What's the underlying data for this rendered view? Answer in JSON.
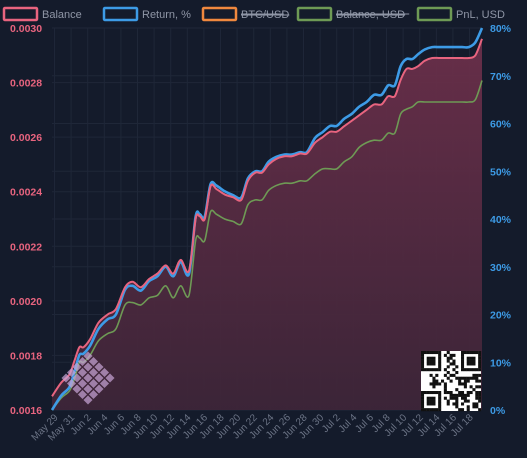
{
  "chart_data": {
    "type": "area",
    "title": "",
    "xlabel": "",
    "ylabel_left": "",
    "ylabel_right": "",
    "grid": true,
    "legend_position": "top",
    "colors": {
      "balance": "#e8647f",
      "return": "#3d9be6",
      "btcusd": "#f0883e",
      "balance_usd": "#6e9a55",
      "pnl_usd": "#6e9a55",
      "background": "#141b2b",
      "grid": "#1f2738",
      "area_fill": "#5a2c43"
    },
    "legend": [
      {
        "label": "Balance",
        "color": "#e8647f",
        "struck": false
      },
      {
        "label": "Return, %",
        "color": "#3d9be6",
        "struck": false
      },
      {
        "label": "BTC/USD",
        "color": "#f0883e",
        "struck": true
      },
      {
        "label": "Balance, USD",
        "color": "#6e9a55",
        "struck": true
      },
      {
        "label": "PnL, USD",
        "color": "#6e9a55",
        "struck": false
      }
    ],
    "y_left": {
      "ylim": [
        0.0016,
        0.003
      ],
      "ticks": [
        "0.0030",
        "0.0028",
        "0.0026",
        "0.0024",
        "0.0022",
        "0.0020",
        "0.0018",
        "0.0016"
      ],
      "tick_values": [
        0.003,
        0.0028,
        0.0026,
        0.0024,
        0.0022,
        0.002,
        0.0018,
        0.0016
      ]
    },
    "y_right": {
      "ylim": [
        0,
        80
      ],
      "ticks": [
        "80%",
        "70%",
        "60%",
        "50%",
        "40%",
        "30%",
        "20%",
        "10%",
        "0%"
      ],
      "tick_values": [
        80,
        70,
        60,
        50,
        40,
        30,
        20,
        10,
        0
      ]
    },
    "x_ticks": [
      "May 29",
      "May 31",
      "Jun 2",
      "Jun 4",
      "Jun 6",
      "Jun 8",
      "Jun 10",
      "Jun 12",
      "Jun 14",
      "Jun 16",
      "Jun 18",
      "Jun 20",
      "Jun 22",
      "Jun 24",
      "Jun 26",
      "Jun 28",
      "Jun 30",
      "Jul 2",
      "Jul 4",
      "Jul 6",
      "Jul 8",
      "Jul 10",
      "Jul 12",
      "Jul 14",
      "Jul 16",
      "Jul 18"
    ],
    "x_tick_days": [
      0,
      2,
      4,
      6,
      8,
      10,
      12,
      14,
      16,
      18,
      20,
      22,
      24,
      26,
      28,
      30,
      32,
      34,
      36,
      38,
      40,
      42,
      44,
      46,
      48,
      50
    ],
    "x_range_days": [
      -0.3,
      51.5
    ],
    "series": [
      {
        "name": "Balance",
        "axis": "left",
        "x": [
          -0.3,
          0.8,
          1.8,
          2.4,
          3.0,
          3.5,
          4.3,
          5.3,
          6.4,
          7.4,
          8.5,
          9.4,
          10.4,
          11.4,
          12.4,
          13.4,
          14.3,
          15.2,
          16.2,
          17.0,
          17.5,
          18.1,
          18.8,
          19.5,
          20.5,
          21.5,
          22.5,
          23.3,
          24.2,
          25.0,
          25.8,
          26.7,
          27.7,
          28.6,
          29.6,
          30.4,
          31.4,
          32.3,
          33.2,
          34.0,
          34.9,
          35.8,
          36.7,
          37.6,
          38.5,
          39.4,
          40.2,
          41.0,
          41.7,
          42.4,
          43.1,
          43.8,
          44.6,
          45.5,
          46.4,
          47.3,
          48.2,
          49.1,
          49.9,
          50.7,
          51.5
        ],
        "y": [
          0.00165,
          0.0017,
          0.00173,
          0.00178,
          0.00183,
          0.00183,
          0.00186,
          0.00192,
          0.00195,
          0.00197,
          0.00205,
          0.00207,
          0.00205,
          0.00208,
          0.0021,
          0.00213,
          0.0021,
          0.00215,
          0.00211,
          0.0023,
          0.00231,
          0.0023,
          0.00242,
          0.00241,
          0.00239,
          0.00238,
          0.00237,
          0.00244,
          0.00247,
          0.00247,
          0.0025,
          0.00252,
          0.00253,
          0.00253,
          0.00254,
          0.00254,
          0.00258,
          0.0026,
          0.00262,
          0.00262,
          0.00264,
          0.00266,
          0.00268,
          0.0027,
          0.00272,
          0.00272,
          0.00275,
          0.00275,
          0.00281,
          0.00285,
          0.00285,
          0.00286,
          0.00288,
          0.00289,
          0.00289,
          0.00289,
          0.00289,
          0.00289,
          0.00289,
          0.0029,
          0.00296
        ]
      },
      {
        "name": "Return, %",
        "axis": "right",
        "x": [
          -0.3,
          0.8,
          1.8,
          2.4,
          3.0,
          3.5,
          4.3,
          5.3,
          6.4,
          7.4,
          8.5,
          9.4,
          10.4,
          11.4,
          12.4,
          13.4,
          14.3,
          15.2,
          16.2,
          17.0,
          17.5,
          18.1,
          18.8,
          19.5,
          20.5,
          21.5,
          22.5,
          23.3,
          24.2,
          25.0,
          25.8,
          26.7,
          27.7,
          28.6,
          29.6,
          30.4,
          31.4,
          32.3,
          33.2,
          34.0,
          34.9,
          35.8,
          36.7,
          37.6,
          38.5,
          39.4,
          40.2,
          41.0,
          41.7,
          42.4,
          43.1,
          43.8,
          44.6,
          45.5,
          46.4,
          47.3,
          48.2,
          49.1,
          49.9,
          50.7,
          51.5
        ],
        "y": [
          0,
          3.0,
          4.8,
          8.0,
          11.5,
          11.8,
          13.5,
          17.0,
          19.0,
          20.0,
          25.2,
          26.0,
          25.0,
          27.0,
          28.0,
          30.0,
          28.0,
          31.0,
          28.5,
          40.5,
          41.0,
          40.5,
          47.3,
          47.0,
          45.8,
          45.0,
          44.5,
          48.5,
          50.0,
          50.0,
          52.0,
          53.0,
          53.5,
          53.5,
          54.0,
          54.0,
          57.0,
          58.2,
          59.5,
          59.5,
          61.0,
          62.0,
          63.5,
          64.5,
          66.0,
          66.0,
          68.0,
          68.0,
          72.0,
          73.5,
          73.5,
          74.5,
          75.5,
          76.0,
          76.0,
          76.0,
          76.0,
          76.0,
          76.0,
          77.0,
          80.0
        ]
      },
      {
        "name": "PnL, USD",
        "axis": "right",
        "x": [
          -0.3,
          0.8,
          1.8,
          2.4,
          3.0,
          3.5,
          4.3,
          5.3,
          6.4,
          7.4,
          8.5,
          9.4,
          10.4,
          11.4,
          12.4,
          13.4,
          14.3,
          15.2,
          16.2,
          17.0,
          17.5,
          18.1,
          18.8,
          19.5,
          20.5,
          21.5,
          22.5,
          23.3,
          24.2,
          25.0,
          25.8,
          26.7,
          27.7,
          28.6,
          29.6,
          30.4,
          31.4,
          32.3,
          33.2,
          34.0,
          34.9,
          35.8,
          36.7,
          37.6,
          38.5,
          39.4,
          40.2,
          41.0,
          41.7,
          42.4,
          43.1,
          43.8,
          44.6,
          45.5,
          46.4,
          47.3,
          48.2,
          49.1,
          49.9,
          50.7,
          51.5
        ],
        "y": [
          0,
          2.5,
          4.0,
          6.5,
          10.0,
          10.0,
          11.5,
          14.5,
          16.0,
          17.0,
          22.0,
          22.5,
          22.0,
          23.5,
          24.0,
          26.0,
          23.5,
          26.0,
          24.0,
          35.5,
          36.0,
          35.5,
          41.5,
          41.0,
          40.0,
          39.5,
          39.0,
          43.0,
          44.0,
          44.0,
          46.0,
          47.0,
          47.5,
          47.5,
          48.0,
          48.0,
          49.5,
          50.5,
          50.5,
          50.5,
          52.0,
          53.0,
          55.0,
          56.0,
          56.5,
          56.5,
          58.0,
          58.0,
          62.0,
          63.0,
          63.5,
          64.5,
          64.5,
          64.5,
          64.5,
          64.5,
          64.5,
          64.5,
          64.5,
          65.0,
          69.0
        ]
      }
    ]
  },
  "overlays": {
    "diamond_pattern_icon": "diamond-pattern",
    "qr_code_icon": "qr-code"
  }
}
